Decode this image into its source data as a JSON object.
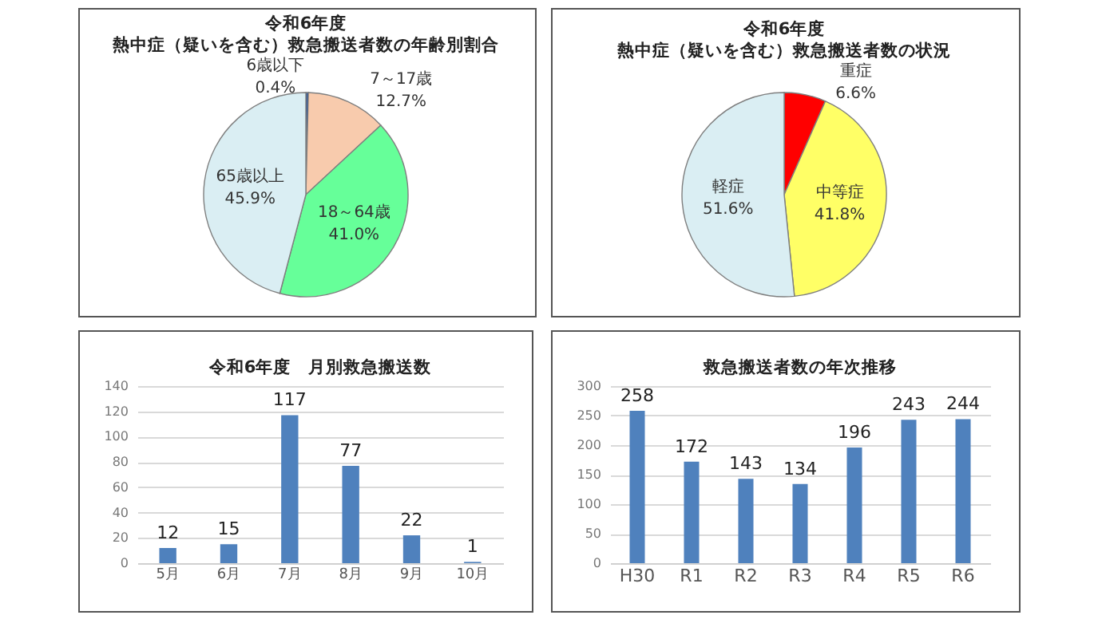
{
  "chart_data": [
    {
      "type": "pie",
      "title": "令和6年度",
      "subtitle": "熱中症（疑いを含む）救急搬送者数の年齢別割合",
      "categories": [
        "6歳以下",
        "7～17歳",
        "18～64歳",
        "65歳以上"
      ],
      "values": [
        0.4,
        12.7,
        41.0,
        45.9
      ],
      "value_labels": [
        "0.4%",
        "12.7%",
        "41.0%",
        "45.9%"
      ],
      "colors": [
        "#1f4e9c",
        "#f8cbad",
        "#66ff99",
        "#daeef3"
      ],
      "legend": false
    },
    {
      "type": "pie",
      "title": "令和6年度",
      "subtitle": "熱中症（疑いを含む）救急搬送者数の状況",
      "categories": [
        "重症",
        "中等症",
        "軽症"
      ],
      "values": [
        6.6,
        41.8,
        51.6
      ],
      "value_labels": [
        "6.6%",
        "41.8%",
        "51.6%"
      ],
      "colors": [
        "#ff0000",
        "#ffff66",
        "#daeef3"
      ],
      "legend": false
    },
    {
      "type": "bar",
      "title": "令和6年度　月別救急搬送数",
      "categories": [
        "5月",
        "6月",
        "7月",
        "8月",
        "9月",
        "10月"
      ],
      "values": [
        12,
        15,
        117,
        77,
        22,
        1
      ],
      "color": "#4f81bd",
      "ylim": [
        0,
        140
      ],
      "yticks": [
        0,
        20,
        40,
        60,
        80,
        100,
        120,
        140
      ],
      "grid": "y",
      "data_labels": true
    },
    {
      "type": "bar",
      "title": "救急搬送者数の年次推移",
      "categories": [
        "H30",
        "R1",
        "R2",
        "R3",
        "R4",
        "R5",
        "R6"
      ],
      "values": [
        258,
        172,
        143,
        134,
        196,
        243,
        244
      ],
      "color": "#4f81bd",
      "ylim": [
        0,
        300
      ],
      "yticks": [
        0,
        50,
        100,
        150,
        200,
        250,
        300
      ],
      "grid": "y",
      "data_labels": true
    }
  ]
}
